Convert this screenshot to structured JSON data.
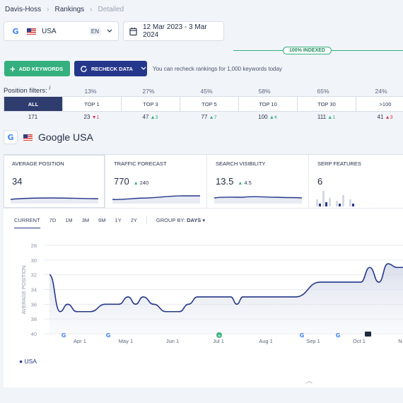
{
  "breadcrumb": {
    "items": [
      "Davis-Hoss",
      "Rankings",
      "Detailed"
    ]
  },
  "location": {
    "country": "USA",
    "language": "EN"
  },
  "date_range": "12 Mar 2023 - 3 Mar 2024",
  "indexed_badge": "100% INDEXED",
  "actions": {
    "add_keywords": "ADD KEYWORDS",
    "recheck_data": "RECHECK DATA",
    "recheck_note": "You can recheck rankings for 1,000 keywords today"
  },
  "position_filters": {
    "label": "Position filters:",
    "info": "i",
    "tabs": [
      {
        "label": "ALL",
        "percent": "",
        "count": "171",
        "delta": "",
        "dir": ""
      },
      {
        "label": "TOP 1",
        "percent": "13%",
        "count": "23",
        "delta": "1",
        "dir": "down"
      },
      {
        "label": "TOP 3",
        "percent": "27%",
        "count": "47",
        "delta": "3",
        "dir": "up"
      },
      {
        "label": "TOP 5",
        "percent": "45%",
        "count": "77",
        "delta": "7",
        "dir": "up"
      },
      {
        "label": "TOP 10",
        "percent": "58%",
        "count": "100",
        "delta": "4",
        "dir": "up"
      },
      {
        "label": "TOP 30",
        "percent": "65%",
        "count": "111",
        "delta": "1",
        "dir": "up"
      },
      {
        "label": ">100",
        "percent": "24%",
        "count": "41",
        "delta": "3",
        "dir": "down"
      }
    ]
  },
  "engine_header": {
    "title": "Google USA"
  },
  "metrics": [
    {
      "title": "AVERAGE POSITION",
      "value": "34",
      "delta": ""
    },
    {
      "title": "TRAFFIC FORECAST",
      "value": "770",
      "delta": "240"
    },
    {
      "title": "SEARCH VISIBILITY",
      "value": "13.5",
      "delta": "4.5"
    },
    {
      "title": "SERP FEATURES",
      "value": "6",
      "delta": ""
    }
  ],
  "range_tabs": [
    "CURRENT",
    "7D",
    "1M",
    "3M",
    "6M",
    "1Y",
    "2Y"
  ],
  "group_by": {
    "label": "GROUP BY:",
    "value": "DAYS"
  },
  "colors": {
    "accent": "#24378a",
    "green": "#34b07e",
    "red": "#e0394f"
  },
  "icons": {
    "up": "triangle-up",
    "down": "triangle-down",
    "calendar": "calendar-icon",
    "google": "google-icon"
  },
  "chart_data": {
    "type": "line",
    "ylabel": "AVERAGE POSITION",
    "xlabel": "",
    "ylim": [
      40,
      27
    ],
    "yticks": [
      "28",
      "30",
      "32",
      "34",
      "36",
      "38",
      "40"
    ],
    "x_ticks": [
      "Apr 1",
      "May 1",
      "Jun 1",
      "Jul 1",
      "Aug 1",
      "Sep 1",
      "Oct 1",
      "N"
    ],
    "legend": [
      "USA"
    ],
    "series": [
      {
        "name": "USA",
        "x": [
          "2023-03-12",
          "2023-03-19",
          "2023-03-24",
          "2023-03-30",
          "2023-04-08",
          "2023-04-18",
          "2023-04-27",
          "2023-05-03",
          "2023-05-08",
          "2023-05-13",
          "2023-05-20",
          "2023-05-28",
          "2023-06-06",
          "2023-06-12",
          "2023-06-18",
          "2023-06-27",
          "2023-07-10",
          "2023-07-14",
          "2023-07-18",
          "2023-07-22",
          "2023-08-05",
          "2023-08-22",
          "2023-09-07",
          "2023-09-18",
          "2023-10-04",
          "2023-10-10",
          "2023-10-16",
          "2023-10-22",
          "2023-10-28",
          "2023-11-01"
        ],
        "values": [
          32,
          37,
          36,
          37,
          37,
          36,
          36,
          35,
          36,
          35,
          36,
          37,
          37,
          36,
          35,
          35,
          35,
          36,
          35,
          35,
          35,
          35,
          33,
          33,
          33,
          31,
          33,
          30.5,
          31,
          31
        ]
      }
    ],
    "grid": true,
    "legend_position": "bottom-left"
  }
}
